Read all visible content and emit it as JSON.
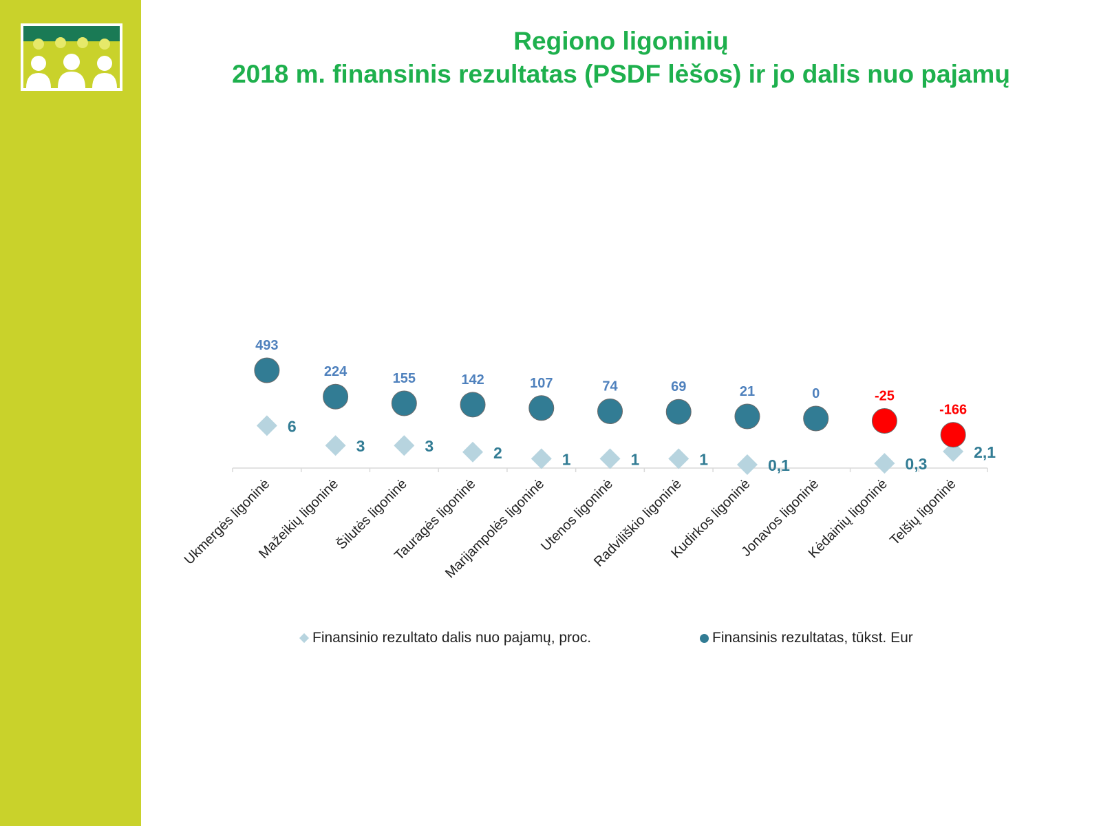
{
  "header": {
    "title_line1": "Regiono ligoninių",
    "title_line2": "2018 m. finansinis rezultatas (PSDF lėšos) ir jo dalis nuo pajamų"
  },
  "chart_data": {
    "type": "scatter",
    "categories": [
      "Ukmergės ligoninė",
      "Mažeikių ligoninė",
      "Šilutės ligoninė",
      "Tauragės ligoninė",
      "Marijampolės ligoninė",
      "Utenos ligoninė",
      "Radviliškio ligoninė",
      "Kudirkos ligoninė",
      "Jonavos ligoninė",
      "Kėdainių ligoninė",
      "Telšių ligoninė"
    ],
    "series": [
      {
        "name": "Finansinio rezultato dalis nuo pajamų, proc.",
        "marker": "diamond",
        "color": "#b7d4df",
        "label_color": "#327c94",
        "values": [
          6,
          3,
          3,
          2,
          1,
          1,
          1,
          0.1,
          null,
          0.3,
          2.1
        ],
        "labels": [
          "6",
          "3",
          "3",
          "2",
          "1",
          "1",
          "1",
          "0,1",
          "",
          "0,3",
          "2,1"
        ]
      },
      {
        "name": "Finansinis rezultatas, tūkst. Eur",
        "marker": "circle",
        "color": "#327c94",
        "negative_color": "#ff0000",
        "label_color": "#4f81bd",
        "negative_label_color": "#ff0000",
        "values": [
          493,
          224,
          155,
          142,
          107,
          74,
          69,
          21,
          0,
          -25,
          -166
        ],
        "labels": [
          "493",
          "224",
          "155",
          "142",
          "107",
          "74",
          "69",
          "21",
          "0",
          "-25",
          "-166"
        ]
      }
    ],
    "xlabel": "",
    "ylabel": "",
    "grid": false,
    "legend_position": "bottom"
  }
}
